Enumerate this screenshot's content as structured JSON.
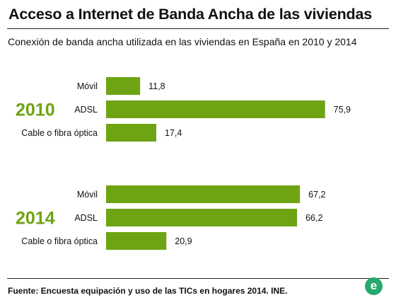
{
  "header": {
    "title": "Acceso a Internet de Banda Ancha de las viviendas",
    "subtitle": "Conexión de banda ancha utilizada en las viviendas en España en 2010 y 2014"
  },
  "footer": {
    "source": "Fuente: Encuesta equipación y uso de las TICs en hogares 2014. INE.",
    "logo_letter": "e"
  },
  "colors": {
    "bar": "#6ea413",
    "year": "#6ea413",
    "logo": "#26a96c"
  },
  "chart_data": {
    "type": "bar",
    "orientation": "horizontal",
    "title": "Acceso a Internet de Banda Ancha de las viviendas",
    "subtitle": "Conexión de banda ancha utilizada en las viviendas en España en 2010 y 2014",
    "categories": [
      "Móvil",
      "ADSL",
      "Cable o fibra óptica"
    ],
    "value_format": "decimal-comma",
    "xlim": [
      0,
      80
    ],
    "grid": false,
    "groups": [
      {
        "label": "2010",
        "values": [
          11.8,
          75.9,
          17.4
        ]
      },
      {
        "label": "2014",
        "values": [
          67.2,
          66.2,
          20.9
        ]
      }
    ]
  }
}
